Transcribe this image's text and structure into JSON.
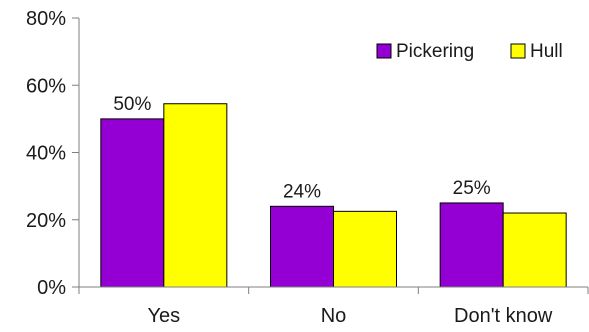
{
  "chart_data": {
    "type": "bar",
    "categories": [
      "Yes",
      "No",
      "Don't know"
    ],
    "series": [
      {
        "name": "Pickering",
        "values": [
          50,
          24,
          25
        ],
        "color": "#9400D3",
        "data_labels": [
          "50%",
          "24%",
          "25%"
        ]
      },
      {
        "name": "Hull",
        "values": [
          54.5,
          22.5,
          22
        ],
        "color": "#FFFF00"
      }
    ],
    "y_ticks": [
      "0%",
      "20%",
      "40%",
      "60%",
      "80%"
    ],
    "ylim": [
      0,
      80
    ],
    "grid": false,
    "legend_position": "top-right",
    "bar_outline_color": "#000000"
  }
}
